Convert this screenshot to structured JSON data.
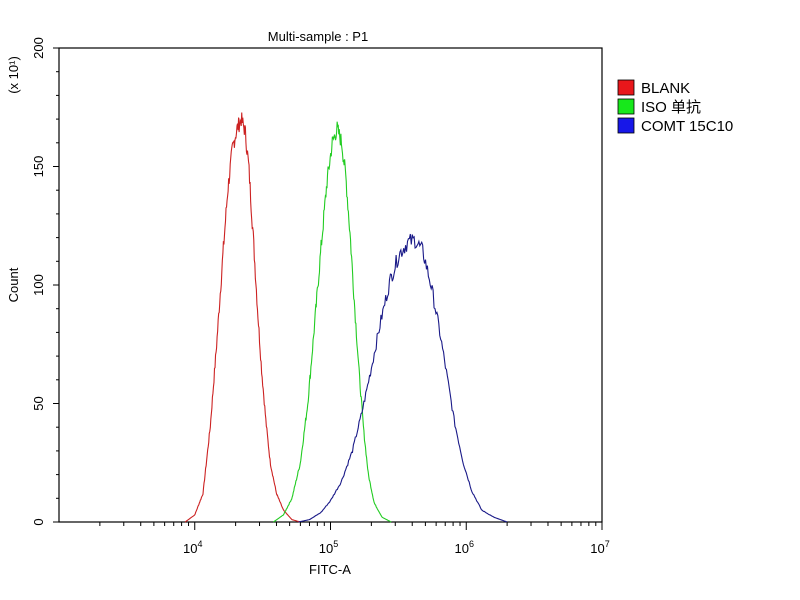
{
  "chart_data": {
    "type": "line",
    "title": "Multi-sample : P1",
    "xlabel": "FITC-A",
    "ylabel": "Count",
    "y_multiplier_label": "(x 10¹)",
    "x_scale": "log",
    "xlim": [
      1000,
      10000000
    ],
    "ylim": [
      0,
      200
    ],
    "x_tick_labels": [
      {
        "base": "10",
        "exp": "4",
        "value": 10000
      },
      {
        "base": "10",
        "exp": "5",
        "value": 100000
      },
      {
        "base": "10",
        "exp": "6",
        "value": 1000000
      },
      {
        "base": "10",
        "exp": "7",
        "value": 10000000
      }
    ],
    "y_ticks": [
      0,
      50,
      100,
      150,
      200
    ],
    "grid": false,
    "legend_position": "right",
    "series": [
      {
        "name": "BLANK",
        "color": "#cc2222",
        "legend_color": "#e8171b",
        "peak_x": 22000,
        "peak_y": 170,
        "points": [
          [
            8500,
            0
          ],
          [
            10000,
            3
          ],
          [
            11500,
            12
          ],
          [
            13000,
            40
          ],
          [
            14500,
            75
          ],
          [
            16000,
            110
          ],
          [
            17500,
            140
          ],
          [
            19000,
            158
          ],
          [
            20500,
            166
          ],
          [
            22000,
            170
          ],
          [
            23500,
            165
          ],
          [
            25000,
            150
          ],
          [
            27000,
            120
          ],
          [
            29000,
            90
          ],
          [
            31000,
            65
          ],
          [
            33500,
            42
          ],
          [
            36000,
            25
          ],
          [
            40000,
            12
          ],
          [
            45000,
            5
          ],
          [
            52000,
            1
          ],
          [
            60000,
            0
          ]
        ]
      },
      {
        "name": "ISO 单抗",
        "color": "#22cc22",
        "legend_color": "#17e81b",
        "peak_x": 112000,
        "peak_y": 166,
        "points": [
          [
            38000,
            0
          ],
          [
            45000,
            3
          ],
          [
            52000,
            10
          ],
          [
            60000,
            25
          ],
          [
            68000,
            50
          ],
          [
            76000,
            82
          ],
          [
            85000,
            115
          ],
          [
            94000,
            143
          ],
          [
            103000,
            160
          ],
          [
            112000,
            166
          ],
          [
            121000,
            160
          ],
          [
            130000,
            145
          ],
          [
            140000,
            120
          ],
          [
            151000,
            90
          ],
          [
            163000,
            62
          ],
          [
            176000,
            38
          ],
          [
            190000,
            20
          ],
          [
            210000,
            8
          ],
          [
            240000,
            2
          ],
          [
            280000,
            0
          ]
        ]
      },
      {
        "name": "COMT 15C10",
        "color": "#1a1a88",
        "legend_color": "#1717e8",
        "peak_x": 420000,
        "peak_y": 119,
        "points": [
          [
            58000,
            0
          ],
          [
            70000,
            1
          ],
          [
            85000,
            4
          ],
          [
            100000,
            9
          ],
          [
            120000,
            17
          ],
          [
            145000,
            30
          ],
          [
            170000,
            46
          ],
          [
            200000,
            65
          ],
          [
            235000,
            85
          ],
          [
            275000,
            102
          ],
          [
            320000,
            113
          ],
          [
            370000,
            118
          ],
          [
            420000,
            119
          ],
          [
            480000,
            114
          ],
          [
            550000,
            100
          ],
          [
            630000,
            82
          ],
          [
            720000,
            62
          ],
          [
            820000,
            42
          ],
          [
            950000,
            25
          ],
          [
            1100000,
            13
          ],
          [
            1300000,
            5
          ],
          [
            1600000,
            2
          ],
          [
            2000000,
            0
          ]
        ]
      }
    ]
  }
}
